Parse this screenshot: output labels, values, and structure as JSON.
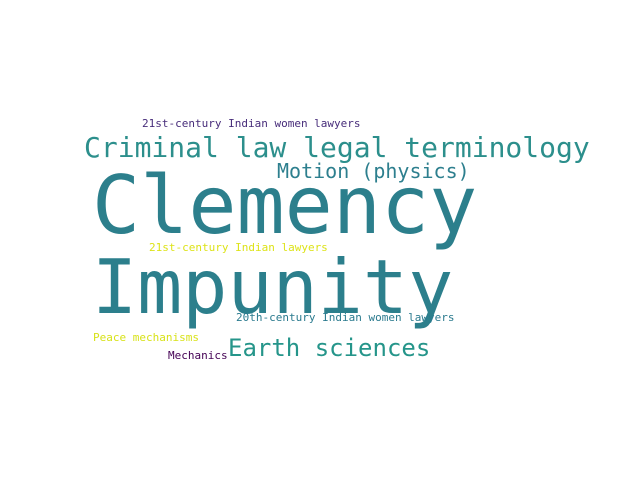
{
  "words": [
    {
      "key": "clemency",
      "text": "Clemency",
      "color": "#2c7f8c"
    },
    {
      "key": "impunity",
      "text": "Impunity",
      "color": "#2c7f8c"
    },
    {
      "key": "criminal",
      "text": "Criminal law legal terminology",
      "color": "#2c8f8c"
    },
    {
      "key": "motion",
      "text": "Motion (physics)",
      "color": "#2d7f8e"
    },
    {
      "key": "earth",
      "text": "Earth sciences",
      "color": "#25958a"
    },
    {
      "key": "21stw",
      "text": "21st-century Indian women lawyers",
      "color": "#472c7a"
    },
    {
      "key": "21st",
      "text": "21st-century Indian lawyers",
      "color": "#dde318"
    },
    {
      "key": "20thw",
      "text": "20th-century Indian women lawyers",
      "color": "#2a7a8e"
    },
    {
      "key": "peace",
      "text": "Peace mechanisms",
      "color": "#d8e219"
    },
    {
      "key": "mech",
      "text": "Mechanics",
      "color": "#440154"
    }
  ]
}
